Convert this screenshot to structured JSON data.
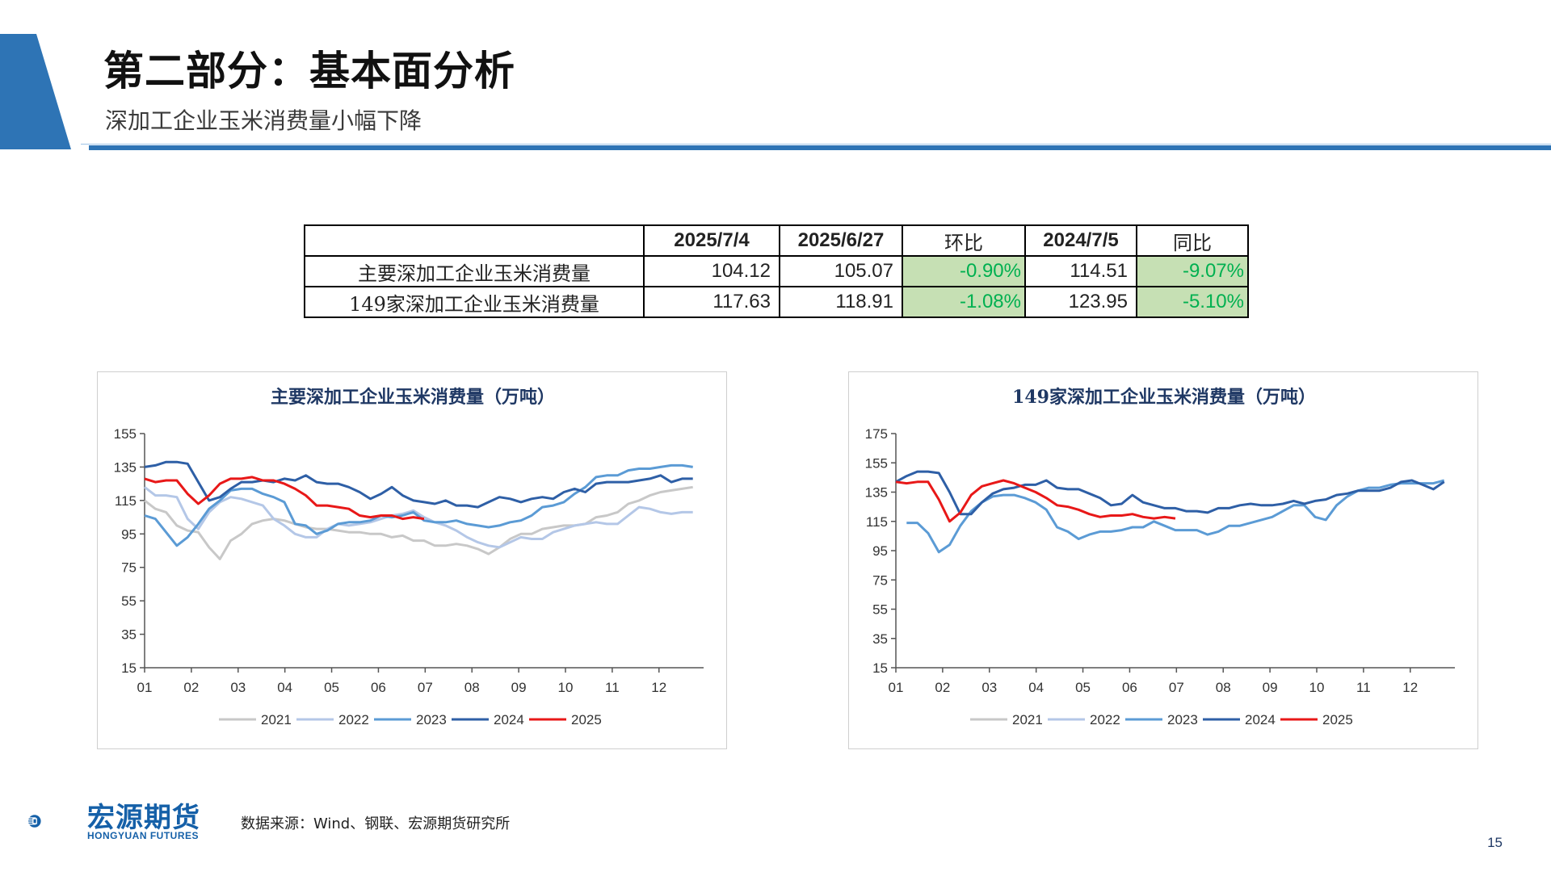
{
  "header": {
    "title": "第二部分：基本面分析",
    "subtitle": "深加工企业玉米消费量小幅下降"
  },
  "table": {
    "headers": [
      "",
      "2025/7/4",
      "2025/6/27",
      "环比",
      "2024/7/5",
      "同比"
    ],
    "rows": [
      {
        "label": "主要深加工企业玉米消费量",
        "v1": "104.12",
        "v2": "105.07",
        "hb": "-0.90%",
        "v3": "114.51",
        "tb": "-9.07%"
      },
      {
        "label": "149家深加工企业玉米消费量",
        "v1": "117.63",
        "v2": "118.91",
        "hb": "-1.08%",
        "v3": "123.95",
        "tb": "-5.10%"
      }
    ],
    "change_bg": "#c6e0b4",
    "change_text": "#00b050"
  },
  "chart_data": [
    {
      "type": "line",
      "title": "主要深加工企业玉米消费量（万吨）",
      "x_ticks": [
        "01",
        "02",
        "03",
        "04",
        "05",
        "06",
        "07",
        "08",
        "09",
        "10",
        "11",
        "12"
      ],
      "ylim": [
        15,
        155
      ],
      "y_ticks": [
        15,
        35,
        55,
        75,
        95,
        115,
        135,
        155
      ],
      "legend_position": "bottom",
      "x_unit": "week of year",
      "series": [
        {
          "name": "2021",
          "color": "#c8c8c8",
          "x": [
            1,
            2,
            3,
            4,
            5,
            6,
            7,
            8,
            9,
            10,
            11,
            12,
            13,
            14,
            15,
            16,
            17,
            18,
            19,
            20,
            21,
            22,
            23,
            24,
            25,
            26,
            27,
            28,
            29,
            30,
            31,
            32,
            33,
            34,
            35,
            36,
            37,
            38,
            39,
            40,
            41,
            42,
            43,
            44,
            45,
            46,
            47,
            48,
            49,
            50,
            51,
            52
          ],
          "values": [
            115,
            110,
            108,
            100,
            97,
            96,
            87,
            80,
            91,
            95,
            101,
            103,
            104,
            103,
            101,
            99,
            98,
            98,
            97,
            96,
            96,
            95,
            95,
            93,
            94,
            91,
            91,
            88,
            88,
            89,
            88,
            86,
            83,
            87,
            92,
            95,
            95,
            98,
            99,
            100,
            100,
            101,
            105,
            106,
            108,
            113,
            115,
            118,
            120,
            121,
            122,
            123
          ]
        },
        {
          "name": "2022",
          "color": "#b4c7e7",
          "x": [
            1,
            2,
            3,
            4,
            5,
            6,
            7,
            8,
            9,
            10,
            11,
            12,
            13,
            14,
            15,
            16,
            17,
            18,
            19,
            20,
            21,
            22,
            23,
            24,
            25,
            26,
            27,
            28,
            29,
            30,
            31,
            32,
            33,
            34,
            35,
            36,
            37,
            38,
            39,
            40,
            41,
            42,
            43,
            44,
            45,
            46,
            47,
            48,
            49,
            50,
            51,
            52
          ],
          "values": [
            123,
            118,
            118,
            117,
            104,
            98,
            108,
            114,
            117,
            116,
            114,
            112,
            104,
            100,
            95,
            93,
            93,
            98,
            101,
            100,
            101,
            102,
            104,
            106,
            107,
            109,
            105,
            102,
            100,
            97,
            93,
            90,
            88,
            87,
            90,
            93,
            92,
            92,
            96,
            98,
            100,
            101,
            102,
            101,
            101,
            106,
            111,
            110,
            108,
            107,
            108,
            108
          ]
        },
        {
          "name": "2023",
          "color": "#5b9bd5",
          "x": [
            1,
            2,
            3,
            4,
            5,
            6,
            7,
            8,
            9,
            10,
            11,
            12,
            13,
            14,
            15,
            16,
            17,
            18,
            19,
            20,
            21,
            22,
            23,
            24,
            25,
            26,
            27,
            28,
            29,
            30,
            31,
            32,
            33,
            34,
            35,
            36,
            37,
            38,
            39,
            40,
            41,
            42,
            43,
            44,
            45,
            46,
            47,
            48,
            49,
            50,
            51,
            52
          ],
          "values": [
            106,
            104,
            96,
            88,
            93,
            101,
            110,
            115,
            121,
            122,
            122,
            119,
            117,
            114,
            101,
            100,
            95,
            97,
            101,
            102,
            102,
            103,
            106,
            105,
            106,
            108,
            103,
            102,
            102,
            103,
            101,
            100,
            99,
            100,
            102,
            103,
            106,
            111,
            112,
            114,
            119,
            123,
            129,
            130,
            130,
            133,
            134,
            134,
            135,
            136,
            136,
            135
          ]
        },
        {
          "name": "2024",
          "color": "#2e5fa6",
          "x": [
            1,
            2,
            3,
            4,
            5,
            6,
            7,
            8,
            9,
            10,
            11,
            12,
            13,
            14,
            15,
            16,
            17,
            18,
            19,
            20,
            21,
            22,
            23,
            24,
            25,
            26,
            27,
            28,
            29,
            30,
            31,
            32,
            33,
            34,
            35,
            36,
            37,
            38,
            39,
            40,
            41,
            42,
            43,
            44,
            45,
            46,
            47,
            48,
            49,
            50,
            51,
            52
          ],
          "values": [
            135,
            136,
            138,
            138,
            137,
            126,
            115,
            117,
            122,
            126,
            126,
            127,
            126,
            128,
            127,
            130,
            126,
            125,
            125,
            123,
            120,
            116,
            119,
            123,
            118,
            115,
            114,
            113,
            115,
            112,
            112,
            111,
            114,
            117,
            116,
            114,
            116,
            117,
            116,
            120,
            122,
            120,
            125,
            126,
            126,
            126,
            127,
            128,
            130,
            126,
            128,
            128
          ]
        },
        {
          "name": "2025",
          "color": "#e81818",
          "x": [
            1,
            2,
            3,
            4,
            5,
            6,
            7,
            8,
            9,
            10,
            11,
            12,
            13,
            14,
            15,
            16,
            17,
            18,
            19,
            20,
            21,
            22,
            23,
            24,
            25,
            26,
            27
          ],
          "values": [
            128,
            126,
            127,
            127,
            119,
            113,
            118,
            125,
            128,
            128,
            129,
            127,
            127,
            125,
            122,
            118,
            112,
            112,
            111,
            110,
            106,
            105,
            106,
            106,
            104,
            105,
            104
          ]
        }
      ]
    },
    {
      "type": "line",
      "title": "149家深加工企业玉米消费量（万吨）",
      "x_ticks": [
        "01",
        "02",
        "03",
        "04",
        "05",
        "06",
        "07",
        "08",
        "09",
        "10",
        "11",
        "12"
      ],
      "ylim": [
        15,
        175
      ],
      "y_ticks": [
        15,
        35,
        55,
        75,
        95,
        115,
        135,
        155,
        175
      ],
      "legend_position": "bottom",
      "x_unit": "week of year",
      "series": [
        {
          "name": "2021",
          "color": "#c8c8c8",
          "x": [],
          "values": []
        },
        {
          "name": "2022",
          "color": "#b4c7e7",
          "x": [],
          "values": []
        },
        {
          "name": "2023",
          "color": "#5b9bd5",
          "x": [
            2,
            3,
            4,
            5,
            6,
            7,
            8,
            9,
            10,
            11,
            12,
            13,
            14,
            15,
            16,
            17,
            18,
            19,
            20,
            21,
            22,
            23,
            24,
            25,
            26,
            27,
            28,
            29,
            30,
            31,
            32,
            33,
            34,
            35,
            36,
            37,
            38,
            39,
            40,
            41,
            42,
            43,
            44,
            45,
            46,
            47,
            48,
            49,
            50,
            51,
            52
          ],
          "values": [
            114,
            114,
            107,
            94,
            99,
            112,
            122,
            128,
            132,
            133,
            133,
            131,
            128,
            123,
            111,
            108,
            103,
            106,
            108,
            108,
            109,
            111,
            111,
            115,
            112,
            109,
            109,
            109,
            106,
            108,
            112,
            112,
            114,
            116,
            118,
            122,
            126,
            126,
            118,
            116,
            126,
            132,
            136,
            138,
            138,
            140,
            141,
            141,
            141,
            141,
            143
          ]
        },
        {
          "name": "2024",
          "color": "#2e5fa6",
          "x": [
            1,
            2,
            3,
            4,
            5,
            6,
            7,
            8,
            9,
            10,
            11,
            12,
            13,
            14,
            15,
            16,
            17,
            18,
            19,
            20,
            21,
            22,
            23,
            24,
            25,
            26,
            27,
            28,
            29,
            30,
            31,
            32,
            33,
            34,
            35,
            36,
            37,
            38,
            39,
            40,
            41,
            42,
            43,
            44,
            45,
            46,
            47,
            48,
            49,
            50,
            51,
            52
          ],
          "values": [
            142,
            146,
            149,
            149,
            148,
            135,
            120,
            120,
            128,
            134,
            137,
            138,
            140,
            140,
            143,
            138,
            137,
            137,
            134,
            131,
            126,
            127,
            133,
            128,
            126,
            124,
            124,
            122,
            122,
            121,
            124,
            124,
            126,
            127,
            126,
            126,
            127,
            129,
            127,
            129,
            130,
            133,
            134,
            136,
            136,
            136,
            138,
            142,
            143,
            140,
            137,
            142
          ]
        },
        {
          "name": "2025",
          "color": "#e81818",
          "x": [
            1,
            2,
            3,
            4,
            5,
            6,
            7,
            8,
            9,
            10,
            11,
            12,
            13,
            14,
            15,
            16,
            17,
            18,
            19,
            20,
            21,
            22,
            23,
            24,
            25,
            26,
            27
          ],
          "values": [
            142,
            141,
            142,
            142,
            130,
            115,
            121,
            133,
            139,
            141,
            143,
            141,
            138,
            135,
            131,
            126,
            125,
            123,
            120,
            118,
            119,
            119,
            120,
            118,
            117,
            118,
            117
          ]
        }
      ]
    }
  ],
  "footer": {
    "logo_cn": "宏源期货",
    "logo_en": "HONGYUAN FUTURES",
    "source": "数据来源：Wind、钢联、宏源期货研究所",
    "page_number": "15"
  },
  "colors": {
    "accent": "#2e74b5",
    "brand": "#1560a8"
  }
}
